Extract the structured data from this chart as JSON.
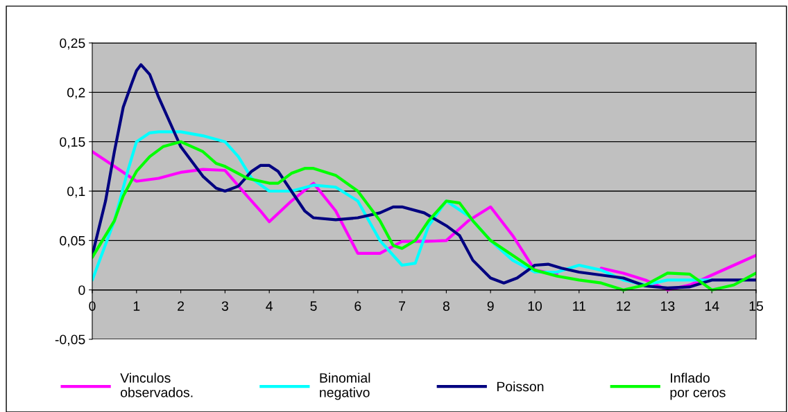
{
  "chart_data": {
    "type": "line",
    "xlim": [
      0,
      15
    ],
    "xticks": [
      0,
      1,
      2,
      3,
      4,
      5,
      6,
      7,
      8,
      9,
      10,
      11,
      12,
      13,
      14,
      15
    ],
    "ylim": [
      -0.05,
      0.25
    ],
    "yticks": [
      {
        "value": -0.05,
        "label": "-0,05"
      },
      {
        "value": 0,
        "label": "0"
      },
      {
        "value": 0.05,
        "label": "0,05"
      },
      {
        "value": 0.1,
        "label": "0,1"
      },
      {
        "value": 0.15,
        "label": "0,15"
      },
      {
        "value": 0.2,
        "label": "0,2"
      },
      {
        "value": 0.25,
        "label": "0,25"
      }
    ],
    "grid": "y",
    "legend": "bottom",
    "marker": "none",
    "line_style": "solid",
    "series": [
      {
        "name": "Vinculos\nobservados.",
        "color": "#ff00ff",
        "x": [
          0,
          0.5,
          1,
          1.5,
          2,
          2.5,
          3,
          3.5,
          3.8,
          4,
          4.5,
          5,
          5.5,
          6,
          6.5,
          7,
          7.5,
          8,
          8.5,
          9,
          9.5,
          10,
          10.5,
          11,
          11.5,
          12,
          12.5,
          13,
          13.5,
          14,
          14.5,
          15
        ],
        "values": [
          0.14,
          0.125,
          0.11,
          0.113,
          0.119,
          0.122,
          0.121,
          0.095,
          0.08,
          0.069,
          0.09,
          0.108,
          0.08,
          0.037,
          0.037,
          0.049,
          0.049,
          0.05,
          0.07,
          0.084,
          0.055,
          0.02,
          0.016,
          null,
          0.022,
          0.017,
          0.01,
          0.0,
          0.005,
          0.015,
          0.025,
          0.035
        ]
      },
      {
        "name": "Binomial\nnegativo",
        "color": "#00ffff",
        "x": [
          0,
          0.5,
          0.8,
          1,
          1.3,
          1.5,
          2,
          2.5,
          3,
          3.3,
          3.6,
          4,
          4.5,
          5,
          5.5,
          6,
          6.5,
          7,
          7.3,
          7.6,
          8,
          8.5,
          9,
          9.5,
          10,
          10.5,
          11,
          11.5,
          12,
          12.5,
          13,
          13.5,
          14
        ],
        "values": [
          0.01,
          0.07,
          0.12,
          0.15,
          0.159,
          0.16,
          0.16,
          0.156,
          0.15,
          0.135,
          0.113,
          0.1,
          0.1,
          0.106,
          0.104,
          0.09,
          0.05,
          0.025,
          0.027,
          0.065,
          0.09,
          0.075,
          0.05,
          0.03,
          0.018,
          0.018,
          0.025,
          0.02,
          0.01,
          0.005,
          0.01,
          0.01,
          0.01
        ]
      },
      {
        "name": "Poisson",
        "color": "#000080",
        "x": [
          0,
          0.3,
          0.5,
          0.7,
          0.9,
          1,
          1.1,
          1.3,
          1.5,
          2,
          2.5,
          2.8,
          3,
          3.3,
          3.6,
          3.8,
          4,
          4.2,
          4.5,
          4.8,
          5,
          5.5,
          6,
          6.5,
          6.8,
          7,
          7.5,
          8,
          8.3,
          8.6,
          9,
          9.3,
          9.6,
          10,
          10.3,
          10.6,
          11,
          11.5,
          12,
          12.5,
          13,
          13.5,
          14,
          14.5,
          15
        ],
        "values": [
          0.035,
          0.09,
          0.14,
          0.185,
          0.21,
          0.222,
          0.228,
          0.218,
          0.195,
          0.145,
          0.115,
          0.103,
          0.1,
          0.105,
          0.12,
          0.126,
          0.126,
          0.12,
          0.1,
          0.08,
          0.073,
          0.071,
          0.073,
          0.078,
          0.084,
          0.084,
          0.078,
          0.065,
          0.055,
          0.03,
          0.012,
          0.007,
          0.012,
          0.025,
          0.026,
          0.022,
          0.018,
          0.015,
          0.012,
          0.004,
          0.002,
          0.003,
          0.01,
          0.01,
          0.01
        ]
      },
      {
        "name": "Inflado\npor ceros",
        "color": "#00ff00",
        "x": [
          0,
          0.5,
          0.7,
          1,
          1.3,
          1.6,
          2,
          2.5,
          2.8,
          3,
          3.5,
          4,
          4.2,
          4.5,
          4.8,
          5,
          5.5,
          6,
          6.5,
          6.8,
          7,
          7.3,
          7.6,
          8,
          8.3,
          8.6,
          9,
          9.5,
          10,
          10.5,
          11,
          11.5,
          12,
          12.5,
          13,
          13.5,
          14,
          14.5,
          15
        ],
        "values": [
          0.033,
          0.07,
          0.095,
          0.12,
          0.135,
          0.145,
          0.15,
          0.14,
          0.128,
          0.125,
          0.113,
          0.108,
          0.108,
          0.118,
          0.123,
          0.123,
          0.116,
          0.1,
          0.07,
          0.045,
          0.042,
          0.05,
          0.07,
          0.09,
          0.088,
          0.07,
          0.05,
          0.035,
          0.02,
          0.014,
          0.01,
          0.007,
          0.0,
          0.005,
          0.017,
          0.016,
          0.0,
          0.005,
          0.017
        ]
      }
    ]
  }
}
